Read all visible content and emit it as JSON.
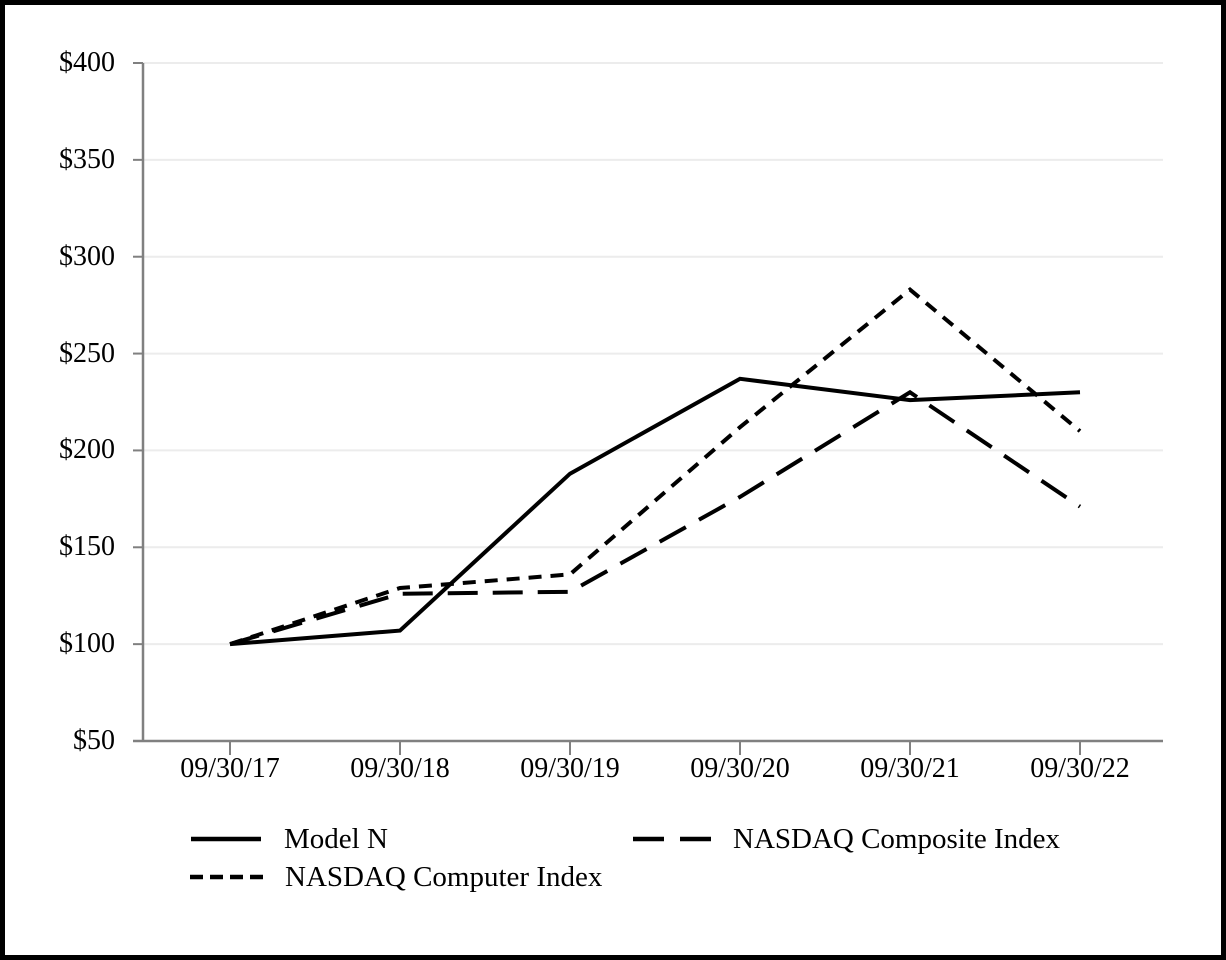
{
  "chart_data": {
    "type": "line",
    "title": "",
    "xlabel": "",
    "ylabel": "",
    "x_categories": [
      "09/30/17",
      "09/30/18",
      "09/30/19",
      "09/30/20",
      "09/30/21",
      "09/30/22"
    ],
    "y_tick_labels": [
      "$50",
      "$100",
      "$150",
      "$200",
      "$250",
      "$300",
      "$350",
      "$400"
    ],
    "y_tick_values": [
      50,
      100,
      150,
      200,
      250,
      300,
      350,
      400
    ],
    "ylim": [
      50,
      400
    ],
    "grid": "horizontal-light",
    "legend_position": "bottom",
    "series": [
      {
        "name": "Model N",
        "line_style": "solid",
        "values": [
          100,
          107,
          188,
          237,
          226,
          230
        ]
      },
      {
        "name": "NASDAQ Composite Index",
        "line_style": "long-dash",
        "values": [
          100,
          126,
          127,
          176,
          230,
          171
        ]
      },
      {
        "name": "NASDAQ Computer Index",
        "line_style": "short-dash",
        "values": [
          100,
          129,
          136,
          212,
          283,
          210
        ]
      }
    ]
  },
  "colors": {
    "series_line": "#000000",
    "axis": "#808080",
    "gridline": "#ececec",
    "frame_border": "#000000",
    "background": "#ffffff",
    "text": "#000000"
  }
}
